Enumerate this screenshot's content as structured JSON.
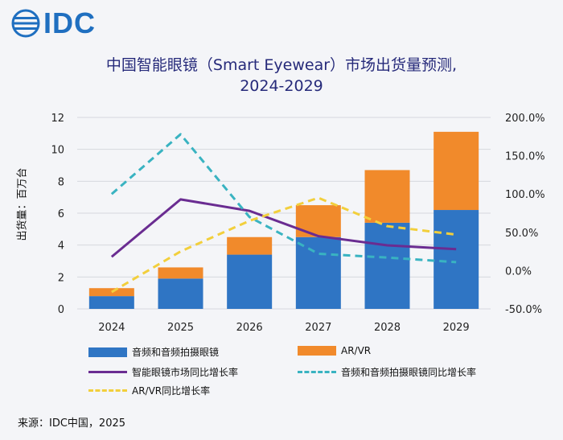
{
  "logo": {
    "text": "IDC"
  },
  "title_line1": "中国智能眼镜（Smart Eyewear）市场出货量预测,",
  "title_line2": "2024-2029",
  "source": "来源：IDC中国，2025",
  "colors": {
    "blue": "#2f75c4",
    "orange": "#f18a2b",
    "purple": "#6a2c91",
    "teal": "#39b3c1",
    "yellow": "#f2cf3c"
  },
  "chart_data": {
    "type": "bar",
    "stacked": true,
    "categories": [
      "2024",
      "2025",
      "2026",
      "2027",
      "2028",
      "2029"
    ],
    "ylabel": "出货量：百万台",
    "ylim": [
      0,
      12
    ],
    "yticks": [
      "0",
      "2",
      "4",
      "6",
      "8",
      "10",
      "12"
    ],
    "y2lim": [
      -50,
      200
    ],
    "y2ticks": [
      "-50.0%",
      "0.0%",
      "50.0%",
      "100.0%",
      "150.0%",
      "200.0%"
    ],
    "series": [
      {
        "name": "音频和音频拍摄眼镜",
        "kind": "bar",
        "values": [
          0.8,
          1.9,
          3.4,
          4.5,
          5.4,
          6.2
        ]
      },
      {
        "name": "AR/VR",
        "kind": "bar",
        "values": [
          0.5,
          0.7,
          1.1,
          2.0,
          3.3,
          4.9
        ]
      },
      {
        "name": "智能眼镜市场同比增长率",
        "kind": "line",
        "axis": "right",
        "style": "solid",
        "values": [
          18,
          93,
          78,
          45,
          33,
          28
        ]
      },
      {
        "name": "音频和音频拍摄眼镜同比增长率",
        "kind": "line",
        "axis": "right",
        "style": "dashed",
        "values": [
          100,
          178,
          70,
          22,
          17,
          11
        ]
      },
      {
        "name": "AR/VR同比增长率",
        "kind": "line",
        "axis": "right",
        "style": "dashed",
        "values": [
          -28,
          25,
          65,
          95,
          58,
          47
        ]
      }
    ],
    "legend_position": "bottom"
  }
}
